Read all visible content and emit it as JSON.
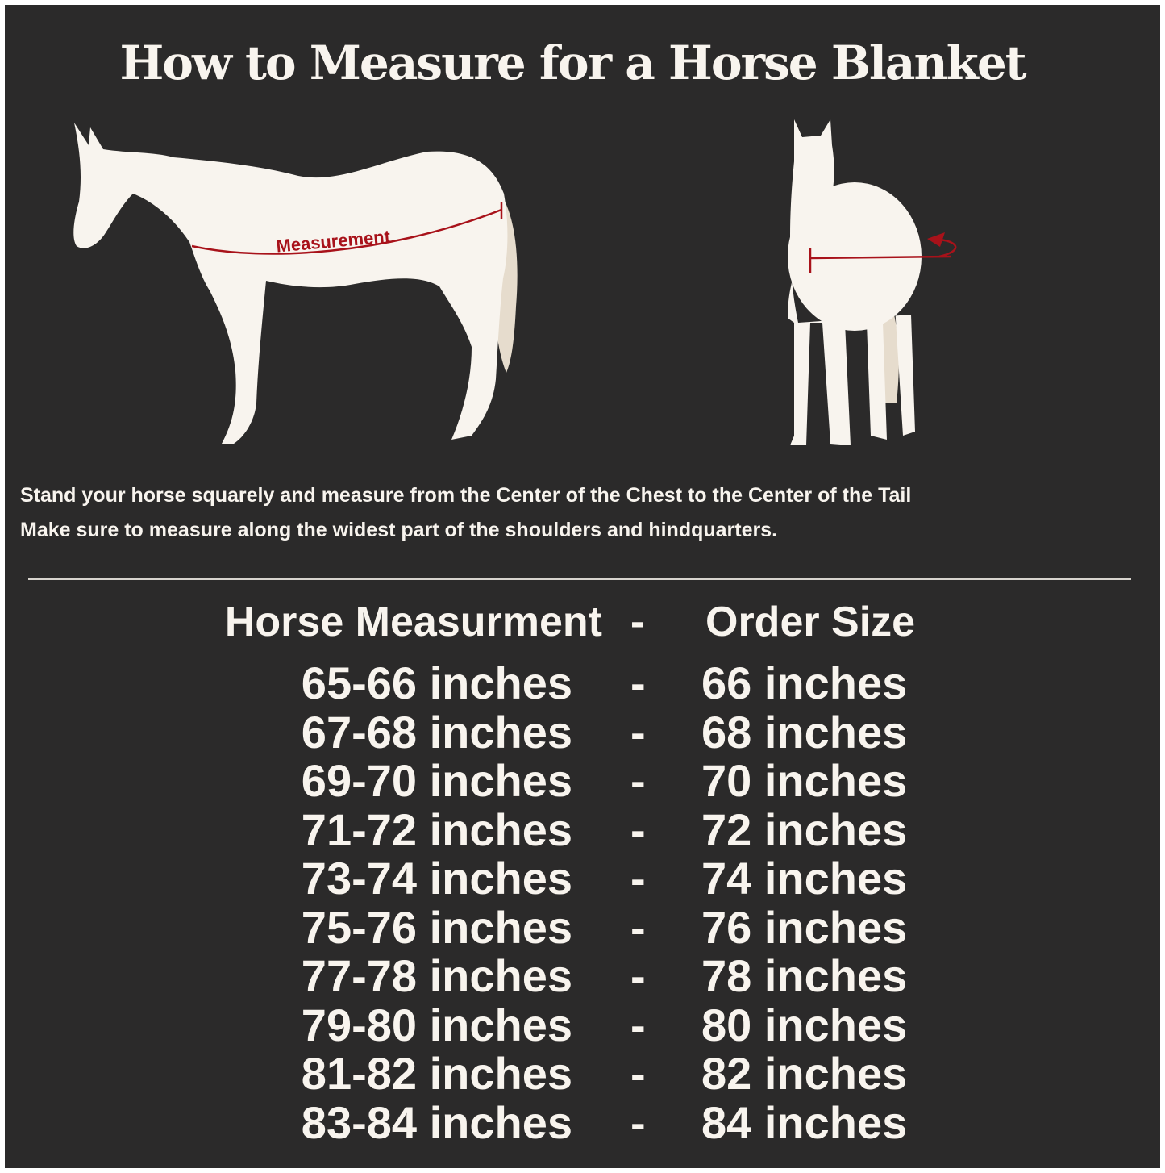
{
  "title": "How to Measure for a Horse Blanket",
  "diagram": {
    "measurement_label": "Measurement",
    "colors": {
      "background": "#2b2a2a",
      "horse": "#f8f4ee",
      "tail": "#e6dccd",
      "measure_line": "#a8121a"
    },
    "icons": [
      "horse-side-view",
      "horse-front-view",
      "measuring-arrow"
    ]
  },
  "instructions": [
    "Stand your horse squarely and measure from the Center of the Chest to the Center of the Tail",
    "Make sure to measure along the widest part of the shoulders and hindquarters."
  ],
  "size_table": {
    "headers": {
      "measurement": "Horse Measurment",
      "separator": "-",
      "size": "Order Size"
    },
    "rows": [
      {
        "measurement": "65-66 inches",
        "separator": "-",
        "size": "66 inches"
      },
      {
        "measurement": "67-68 inches",
        "separator": "-",
        "size": "68 inches"
      },
      {
        "measurement": "69-70 inches",
        "separator": "-",
        "size": "70 inches"
      },
      {
        "measurement": "71-72 inches",
        "separator": "-",
        "size": "72 inches"
      },
      {
        "measurement": "73-74 inches",
        "separator": "-",
        "size": "74 inches"
      },
      {
        "measurement": "75-76 inches",
        "separator": "-",
        "size": "76 inches"
      },
      {
        "measurement": "77-78 inches",
        "separator": "-",
        "size": "78 inches"
      },
      {
        "measurement": "79-80 inches",
        "separator": "-",
        "size": "80 inches"
      },
      {
        "measurement": "81-82 inches",
        "separator": "-",
        "size": "82 inches"
      },
      {
        "measurement": "83-84 inches",
        "separator": "-",
        "size": "84 inches"
      }
    ]
  }
}
